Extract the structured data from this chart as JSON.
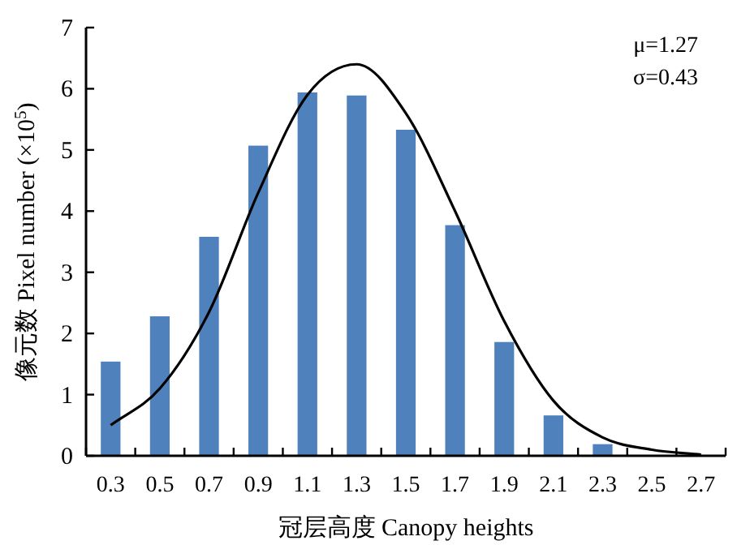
{
  "chart_data": {
    "type": "bar",
    "xlabel": "冠层高度 Canopy heights",
    "ylabel": "像元数 Pixel number (×10$^{5}$)",
    "categories": [
      "0.3",
      "0.5",
      "0.7",
      "0.9",
      "1.1",
      "1.3",
      "1.5",
      "1.7",
      "1.9",
      "2.1",
      "2.3",
      "2.5",
      "2.7"
    ],
    "series": [
      {
        "color": "#4f81bd",
        "values": [
          1.54,
          2.28,
          3.58,
          5.07,
          5.94,
          5.89,
          5.33,
          3.77,
          1.86,
          0.66,
          0.19,
          0,
          0
        ]
      },
      {
        "type": "line",
        "color": "#000000",
        "values": [
          0.5,
          1.1,
          2.35,
          4.3,
          5.9,
          6.4,
          5.6,
          4.0,
          2.2,
          0.9,
          0.3,
          0.1,
          0.02
        ]
      }
    ],
    "ylim": [
      0,
      7
    ],
    "yticks": [
      0,
      1,
      2,
      3,
      4,
      5,
      6,
      7
    ],
    "grid": false,
    "marker": "none",
    "line_style": "solid",
    "annotations": [
      "μ=1.27",
      "σ=0.43"
    ]
  }
}
